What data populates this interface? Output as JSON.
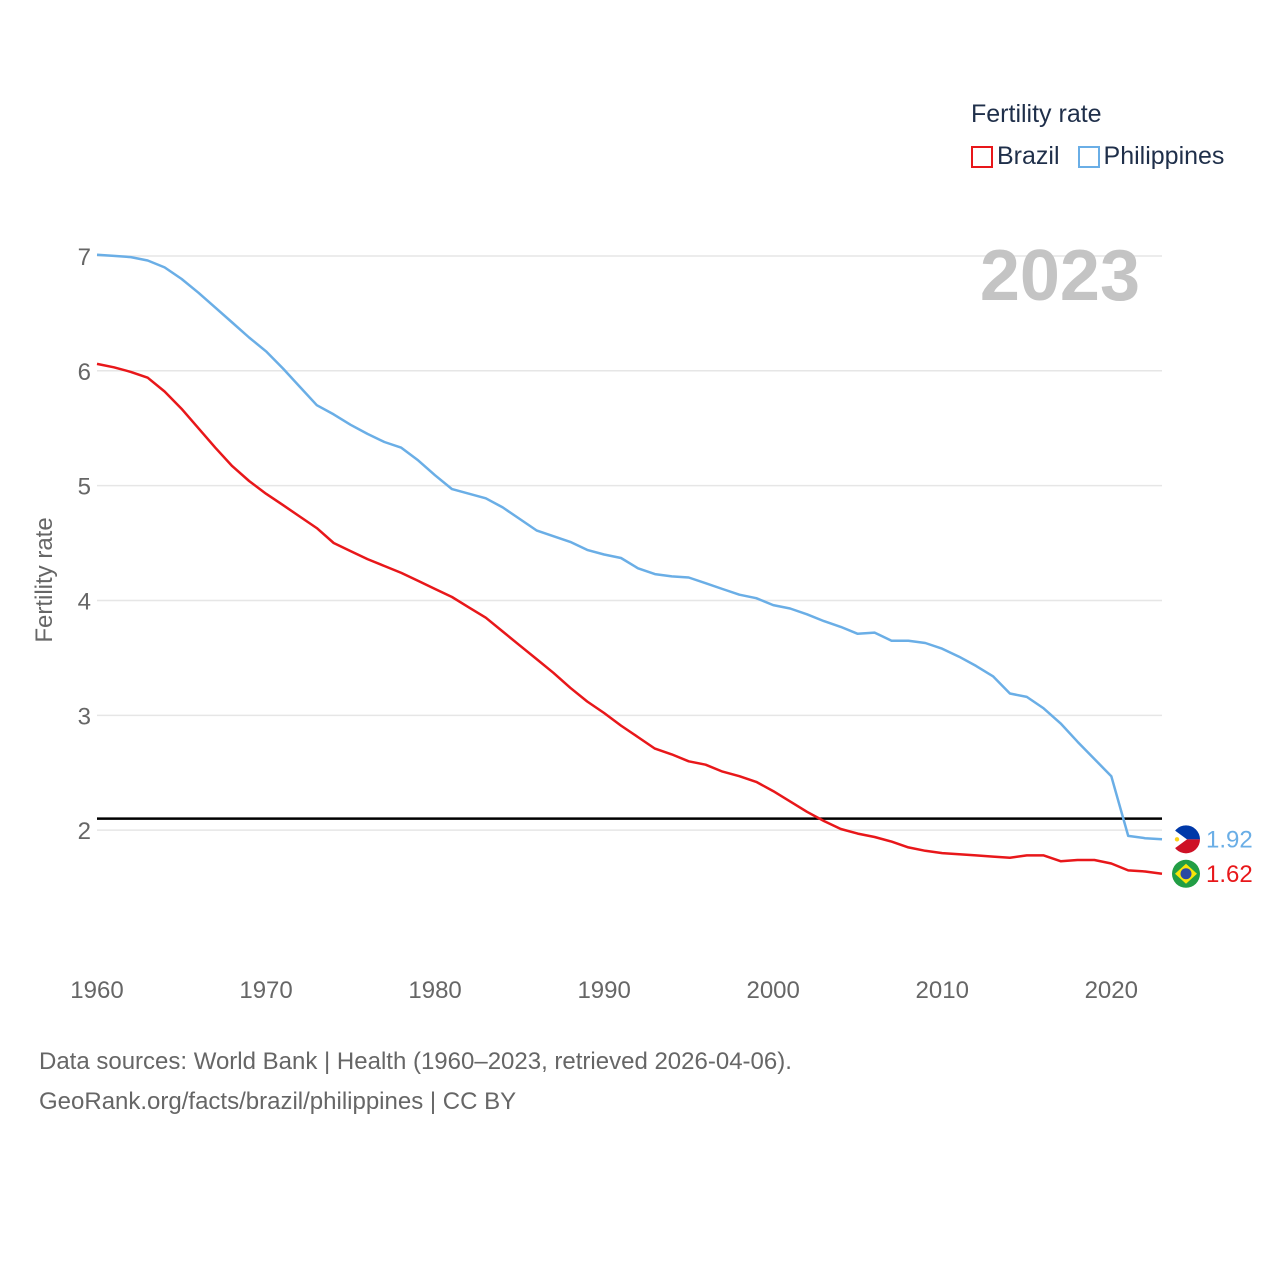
{
  "chart_data": {
    "type": "line",
    "title": "Fertility rate",
    "ylabel": "Fertility rate",
    "xlabel": "",
    "year_label": "2023",
    "ylim": [
      1.0,
      7.4
    ],
    "xlim": [
      1960,
      2023
    ],
    "yticks": [
      2,
      3,
      4,
      5,
      6,
      7
    ],
    "xticks": [
      1960,
      1970,
      1980,
      1990,
      2000,
      2010,
      2020
    ],
    "grid": true,
    "legend_position": "top-right",
    "reference_line": 2.1,
    "x": [
      1960,
      1961,
      1962,
      1963,
      1964,
      1965,
      1966,
      1967,
      1968,
      1969,
      1970,
      1971,
      1972,
      1973,
      1974,
      1975,
      1976,
      1977,
      1978,
      1979,
      1980,
      1981,
      1982,
      1983,
      1984,
      1985,
      1986,
      1987,
      1988,
      1989,
      1990,
      1991,
      1992,
      1993,
      1994,
      1995,
      1996,
      1997,
      1998,
      1999,
      2000,
      2001,
      2002,
      2003,
      2004,
      2005,
      2006,
      2007,
      2008,
      2009,
      2010,
      2011,
      2012,
      2013,
      2014,
      2015,
      2016,
      2017,
      2018,
      2019,
      2020,
      2021,
      2022,
      2023
    ],
    "series": [
      {
        "name": "Brazil",
        "color": "#e8171a",
        "end_label": "1.62",
        "values": [
          6.06,
          6.03,
          5.99,
          5.94,
          5.82,
          5.67,
          5.5,
          5.33,
          5.17,
          5.04,
          4.93,
          4.83,
          4.73,
          4.63,
          4.5,
          4.43,
          4.36,
          4.3,
          4.24,
          4.17,
          4.1,
          4.03,
          3.94,
          3.85,
          3.73,
          3.61,
          3.49,
          3.37,
          3.24,
          3.12,
          3.02,
          2.91,
          2.81,
          2.71,
          2.66,
          2.6,
          2.57,
          2.51,
          2.47,
          2.42,
          2.34,
          2.25,
          2.16,
          2.08,
          2.01,
          1.97,
          1.94,
          1.9,
          1.85,
          1.82,
          1.8,
          1.79,
          1.78,
          1.77,
          1.76,
          1.78,
          1.78,
          1.73,
          1.74,
          1.74,
          1.71,
          1.65,
          1.64,
          1.62
        ]
      },
      {
        "name": "Philippines",
        "color": "#6aaee6",
        "end_label": "1.92",
        "values": [
          7.01,
          7.0,
          6.99,
          6.96,
          6.9,
          6.8,
          6.68,
          6.55,
          6.42,
          6.29,
          6.17,
          6.02,
          5.86,
          5.7,
          5.62,
          5.53,
          5.45,
          5.38,
          5.33,
          5.22,
          5.09,
          4.97,
          4.93,
          4.89,
          4.81,
          4.71,
          4.61,
          4.56,
          4.51,
          4.44,
          4.4,
          4.37,
          4.28,
          4.23,
          4.21,
          4.2,
          4.15,
          4.1,
          4.05,
          4.02,
          3.96,
          3.93,
          3.88,
          3.82,
          3.77,
          3.71,
          3.72,
          3.65,
          3.65,
          3.63,
          3.58,
          3.51,
          3.43,
          3.34,
          3.19,
          3.16,
          3.06,
          2.93,
          2.77,
          2.62,
          2.47,
          1.95,
          1.93,
          1.92
        ]
      }
    ]
  },
  "source": {
    "line1": "Data sources: World Bank | Health (1960–2023, retrieved 2026-04-06).",
    "line2": "GeoRank.org/facts/brazil/philippines | CC BY"
  }
}
